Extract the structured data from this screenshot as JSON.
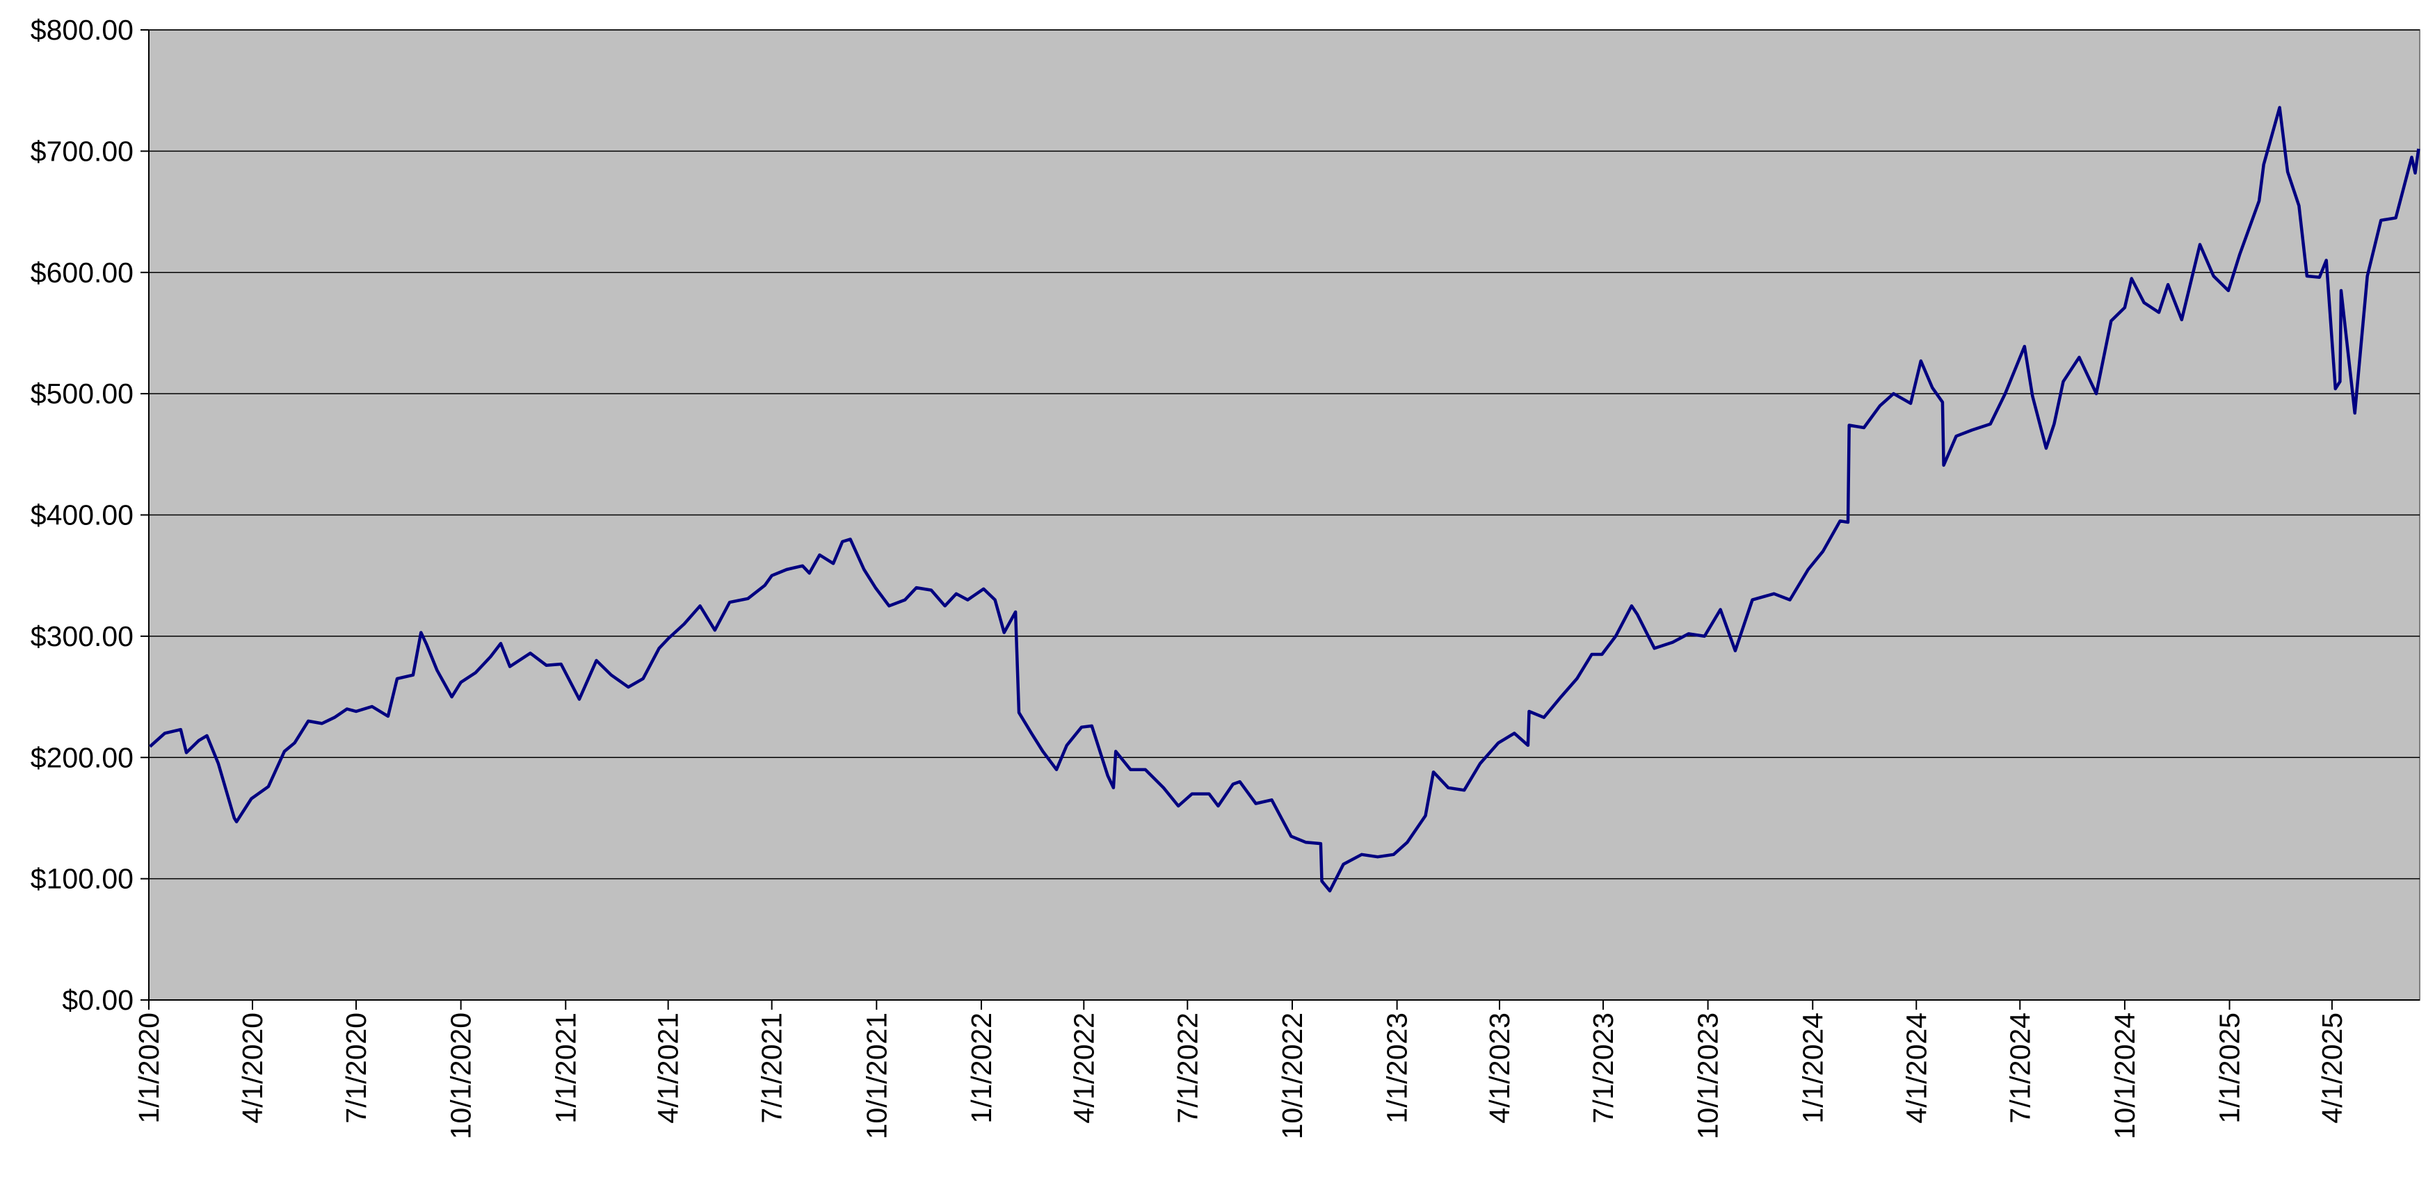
{
  "chart_data": {
    "type": "line",
    "x": [
      "1/2/2020",
      "1/15/2020",
      "1/29/2020",
      "2/3/2020",
      "2/14/2020",
      "2/21/2020",
      "3/2/2020",
      "3/16/2020",
      "3/18/2020",
      "3/31/2020",
      "4/15/2020",
      "4/29/2020",
      "5/8/2020",
      "5/20/2020",
      "6/1/2020",
      "6/12/2020",
      "6/23/2020",
      "7/1/2020",
      "7/15/2020",
      "7/29/2020",
      "8/6/2020",
      "8/20/2020",
      "8/27/2020",
      "9/1/2020",
      "9/10/2020",
      "9/23/2020",
      "10/1/2020",
      "10/14/2020",
      "10/27/2020",
      "11/5/2020",
      "11/13/2020",
      "12/1/2020",
      "12/15/2020",
      "12/28/2020",
      "1/13/2021",
      "1/28/2021",
      "2/10/2021",
      "2/25/2021",
      "3/10/2021",
      "3/24/2021",
      "4/1/2021",
      "4/15/2021",
      "4/29/2021",
      "5/12/2021",
      "5/25/2021",
      "6/10/2021",
      "6/25/2021",
      "7/1/2021",
      "7/14/2021",
      "7/28/2021",
      "8/3/2021",
      "8/12/2021",
      "8/24/2021",
      "9/1/2021",
      "9/8/2021",
      "9/20/2021",
      "9/30/2021",
      "10/12/2021",
      "10/26/2021",
      "11/5/2021",
      "11/18/2021",
      "11/30/2021",
      "12/10/2021",
      "12/20/2021",
      "1/3/2022",
      "1/13/2022",
      "1/21/2022",
      "1/31/2022",
      "2/3/2022",
      "2/14/2022",
      "2/24/2022",
      "3/8/2022",
      "3/17/2022",
      "3/30/2022",
      "4/8/2022",
      "4/22/2022",
      "4/27/2022",
      "4/29/2022",
      "5/12/2022",
      "5/25/2022",
      "6/10/2022",
      "6/23/2022",
      "7/5/2022",
      "7/20/2022",
      "7/28/2022",
      "8/10/2022",
      "8/16/2022",
      "8/30/2022",
      "9/13/2022",
      "9/30/2022",
      "10/13/2022",
      "10/26/2022",
      "10/27/2022",
      "11/3/2022",
      "11/15/2022",
      "12/1/2022",
      "12/15/2022",
      "12/29/2022",
      "1/10/2023",
      "1/26/2023",
      "2/2/2023",
      "2/15/2023",
      "3/1/2023",
      "3/15/2023",
      "3/31/2023",
      "4/14/2023",
      "4/26/2023",
      "4/27/2023",
      "5/10/2023",
      "5/25/2023",
      "6/8/2023",
      "6/21/2023",
      "6/30/2023",
      "7/12/2023",
      "7/26/2023",
      "7/31/2023",
      "8/15/2023",
      "8/31/2023",
      "9/14/2023",
      "9/28/2023",
      "10/12/2023",
      "10/25/2023",
      "11/9/2023",
      "11/28/2023",
      "12/12/2023",
      "12/28/2023",
      "1/10/2024",
      "1/25/2024",
      "2/1/2024",
      "2/2/2024",
      "2/15/2024",
      "2/29/2024",
      "3/12/2024",
      "3/27/2024",
      "4/5/2024",
      "4/15/2024",
      "4/24/2024",
      "4/25/2024",
      "5/6/2024",
      "5/20/2024",
      "6/5/2024",
      "6/18/2024",
      "7/5/2024",
      "7/12/2024",
      "7/24/2024",
      "7/31/2024",
      "8/8/2024",
      "8/22/2024",
      "9/6/2024",
      "9/19/2024",
      "10/1/2024",
      "10/7/2024",
      "10/18/2024",
      "10/31/2024",
      "11/8/2024",
      "11/20/2024",
      "12/6/2024",
      "12/18/2024",
      "12/31/2024",
      "1/10/2025",
      "1/27/2025",
      "1/31/2025",
      "2/14/2025",
      "2/21/2025",
      "3/3/2025",
      "3/10/2025",
      "3/21/2025",
      "3/27/2025",
      "4/4/2025",
      "4/8/2025",
      "4/9/2025",
      "4/21/2025",
      "5/2/2025",
      "5/14/2025",
      "5/27/2025",
      "6/10/2025",
      "6/13/2025",
      "6/16/2025"
    ],
    "series": [
      {
        "color": "#000080",
        "values": [
          209,
          220,
          223,
          204,
          214,
          218,
          195,
          150,
          147,
          166,
          176,
          205,
          212,
          230,
          228,
          233,
          240,
          238,
          242,
          234,
          265,
          268,
          303,
          293,
          272,
          250,
          262,
          270,
          283,
          294,
          275,
          286,
          276,
          277,
          248,
          280,
          268,
          258,
          265,
          290,
          298,
          310,
          325,
          305,
          328,
          331,
          342,
          350,
          355,
          358,
          352,
          367,
          360,
          378,
          380,
          355,
          340,
          325,
          330,
          340,
          338,
          325,
          335,
          330,
          339,
          330,
          303,
          320,
          237,
          220,
          205,
          190,
          210,
          225,
          226,
          185,
          175,
          205,
          190,
          190,
          175,
          160,
          170,
          170,
          160,
          178,
          180,
          162,
          165,
          135,
          130,
          129,
          98,
          90,
          112,
          120,
          118,
          120,
          130,
          152,
          188,
          175,
          173,
          195,
          212,
          220,
          210,
          238,
          233,
          250,
          265,
          285,
          285,
          300,
          325,
          318,
          290,
          295,
          302,
          300,
          322,
          288,
          330,
          335,
          330,
          355,
          370,
          395,
          394,
          474,
          472,
          490,
          500,
          492,
          527,
          505,
          493,
          441,
          465,
          470,
          475,
          500,
          539,
          498,
          455,
          475,
          510,
          530,
          500,
          560,
          571,
          595,
          575,
          567,
          590,
          561,
          623,
          597,
          585,
          615,
          659,
          689,
          736,
          683,
          655,
          597,
          596,
          610,
          504,
          510,
          585,
          484,
          597,
          643,
          645,
          695,
          682,
          702
        ]
      }
    ],
    "xlim": [
      "1/1/2020",
      "6/17/2025"
    ],
    "xticks": [
      "1/1/2020",
      "4/1/2020",
      "7/1/2020",
      "10/1/2020",
      "1/1/2021",
      "4/1/2021",
      "7/1/2021",
      "10/1/2021",
      "1/1/2022",
      "4/1/2022",
      "7/1/2022",
      "10/1/2022",
      "1/1/2023",
      "4/1/2023",
      "7/1/2023",
      "10/1/2023",
      "1/1/2024",
      "4/1/2024",
      "7/1/2024",
      "10/1/2024",
      "1/1/2025",
      "4/1/2025"
    ],
    "ylim": [
      0,
      800
    ],
    "yticks": [
      {
        "value": 0,
        "label": "$0.00"
      },
      {
        "value": 100,
        "label": "$100.00"
      },
      {
        "value": 200,
        "label": "$200.00"
      },
      {
        "value": 300,
        "label": "$300.00"
      },
      {
        "value": 400,
        "label": "$400.00"
      },
      {
        "value": 500,
        "label": "$500.00"
      },
      {
        "value": 600,
        "label": "$600.00"
      },
      {
        "value": 700,
        "label": "$700.00"
      },
      {
        "value": 800,
        "label": "$800.00"
      }
    ],
    "grid": true,
    "background": "#c0c0c0"
  }
}
